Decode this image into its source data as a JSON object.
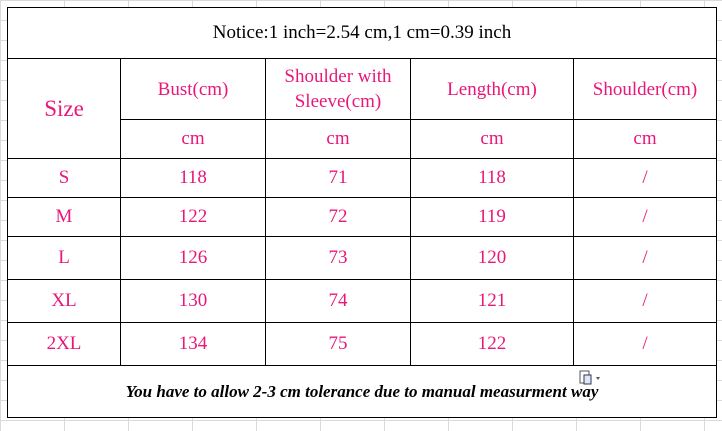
{
  "notice": "Notice:1 inch=2.54 cm,1 cm=0.39 inch",
  "header": {
    "size": "Size",
    "columns": [
      "Bust(cm)",
      "Shoulder with Sleeve(cm)",
      "Length(cm)",
      "Shoulder(cm)"
    ]
  },
  "units": [
    "cm",
    "cm",
    "cm",
    "cm"
  ],
  "rows": [
    [
      "S",
      118,
      71,
      118,
      "/"
    ],
    [
      "M",
      122,
      72,
      119,
      "/"
    ],
    [
      "L",
      126,
      73,
      120,
      "/"
    ],
    [
      "XL",
      130,
      74,
      121,
      "/"
    ],
    [
      "2XL",
      134,
      75,
      122,
      "/"
    ]
  ],
  "footer": "You have to allow 2-3 cm tolerance due to manual measurment way"
}
